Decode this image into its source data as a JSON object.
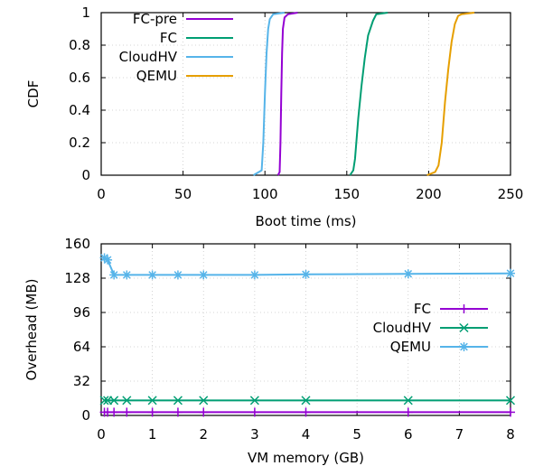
{
  "chart_data": [
    {
      "type": "line",
      "subtype": "cdf",
      "title": "",
      "xlabel": "Boot time (ms)",
      "ylabel": "CDF",
      "xlim": [
        0,
        250
      ],
      "ylim": [
        0,
        1
      ],
      "xticks": [
        "0",
        "50",
        "100",
        "150",
        "200",
        "250"
      ],
      "yticks": [
        "0",
        "0.2",
        "0.4",
        "0.6",
        "0.8",
        "1"
      ],
      "grid": true,
      "legend_position": "top-left",
      "series": [
        {
          "name": "FC-pre",
          "color": "#9400d3",
          "points": [
            [
              108,
              0
            ],
            [
              109,
              0.02
            ],
            [
              109.5,
              0.2
            ],
            [
              110,
              0.5
            ],
            [
              110.5,
              0.75
            ],
            [
              111,
              0.9
            ],
            [
              112,
              0.97
            ],
            [
              114,
              0.99
            ],
            [
              120,
              1
            ]
          ]
        },
        {
          "name": "FC",
          "color": "#009e73",
          "points": [
            [
              152,
              0
            ],
            [
              154,
              0.03
            ],
            [
              155,
              0.1
            ],
            [
              157,
              0.35
            ],
            [
              159,
              0.55
            ],
            [
              161,
              0.72
            ],
            [
              163,
              0.86
            ],
            [
              166,
              0.95
            ],
            [
              168,
              0.99
            ],
            [
              175,
              1
            ]
          ]
        },
        {
          "name": "CloudHV",
          "color": "#56b4e9",
          "points": [
            [
              93,
              0
            ],
            [
              98,
              0.03
            ],
            [
              99,
              0.2
            ],
            [
              100,
              0.5
            ],
            [
              101,
              0.75
            ],
            [
              102,
              0.9
            ],
            [
              103,
              0.96
            ],
            [
              105,
              0.99
            ],
            [
              112,
              1
            ]
          ]
        },
        {
          "name": "QEMU",
          "color": "#e69f00",
          "points": [
            [
              199,
              0
            ],
            [
              204,
              0.02
            ],
            [
              206,
              0.06
            ],
            [
              208,
              0.2
            ],
            [
              210,
              0.45
            ],
            [
              212,
              0.65
            ],
            [
              214,
              0.82
            ],
            [
              216,
              0.93
            ],
            [
              218,
              0.98
            ],
            [
              220,
              0.99
            ],
            [
              228,
              1
            ]
          ]
        }
      ]
    },
    {
      "type": "line",
      "title": "",
      "xlabel": "VM memory (GB)",
      "ylabel": "Overhead (MB)",
      "xlim": [
        0,
        8
      ],
      "ylim": [
        0,
        160
      ],
      "xticks": [
        "0",
        "1",
        "2",
        "3",
        "4",
        "5",
        "6",
        "7",
        "8"
      ],
      "yticks": [
        "0",
        "32",
        "64",
        "96",
        "128",
        "160"
      ],
      "grid": true,
      "legend_position": "middle-right",
      "series": [
        {
          "name": "FC",
          "color": "#9400d3",
          "marker": "plus",
          "points": [
            [
              0.0625,
              3
            ],
            [
              0.125,
              3
            ],
            [
              0.25,
              3
            ],
            [
              0.5,
              3
            ],
            [
              1,
              3
            ],
            [
              1.5,
              3
            ],
            [
              2,
              3
            ],
            [
              3,
              3
            ],
            [
              4,
              3
            ],
            [
              6,
              3
            ],
            [
              8,
              3
            ]
          ]
        },
        {
          "name": "CloudHV",
          "color": "#009e73",
          "marker": "cross",
          "points": [
            [
              0.0625,
              14
            ],
            [
              0.125,
              14
            ],
            [
              0.25,
              14
            ],
            [
              0.5,
              14
            ],
            [
              1,
              14
            ],
            [
              1.5,
              14
            ],
            [
              2,
              14
            ],
            [
              3,
              14
            ],
            [
              4,
              14
            ],
            [
              6,
              14
            ],
            [
              8,
              14
            ]
          ]
        },
        {
          "name": "QEMU",
          "color": "#56b4e9",
          "marker": "star",
          "points": [
            [
              0.0625,
              147
            ],
            [
              0.125,
              145
            ],
            [
              0.25,
              131
            ],
            [
              0.5,
              131
            ],
            [
              1,
              131
            ],
            [
              1.5,
              131
            ],
            [
              2,
              131
            ],
            [
              3,
              131
            ],
            [
              4,
              131.5
            ],
            [
              6,
              132
            ],
            [
              8,
              132.5
            ]
          ]
        }
      ]
    }
  ]
}
